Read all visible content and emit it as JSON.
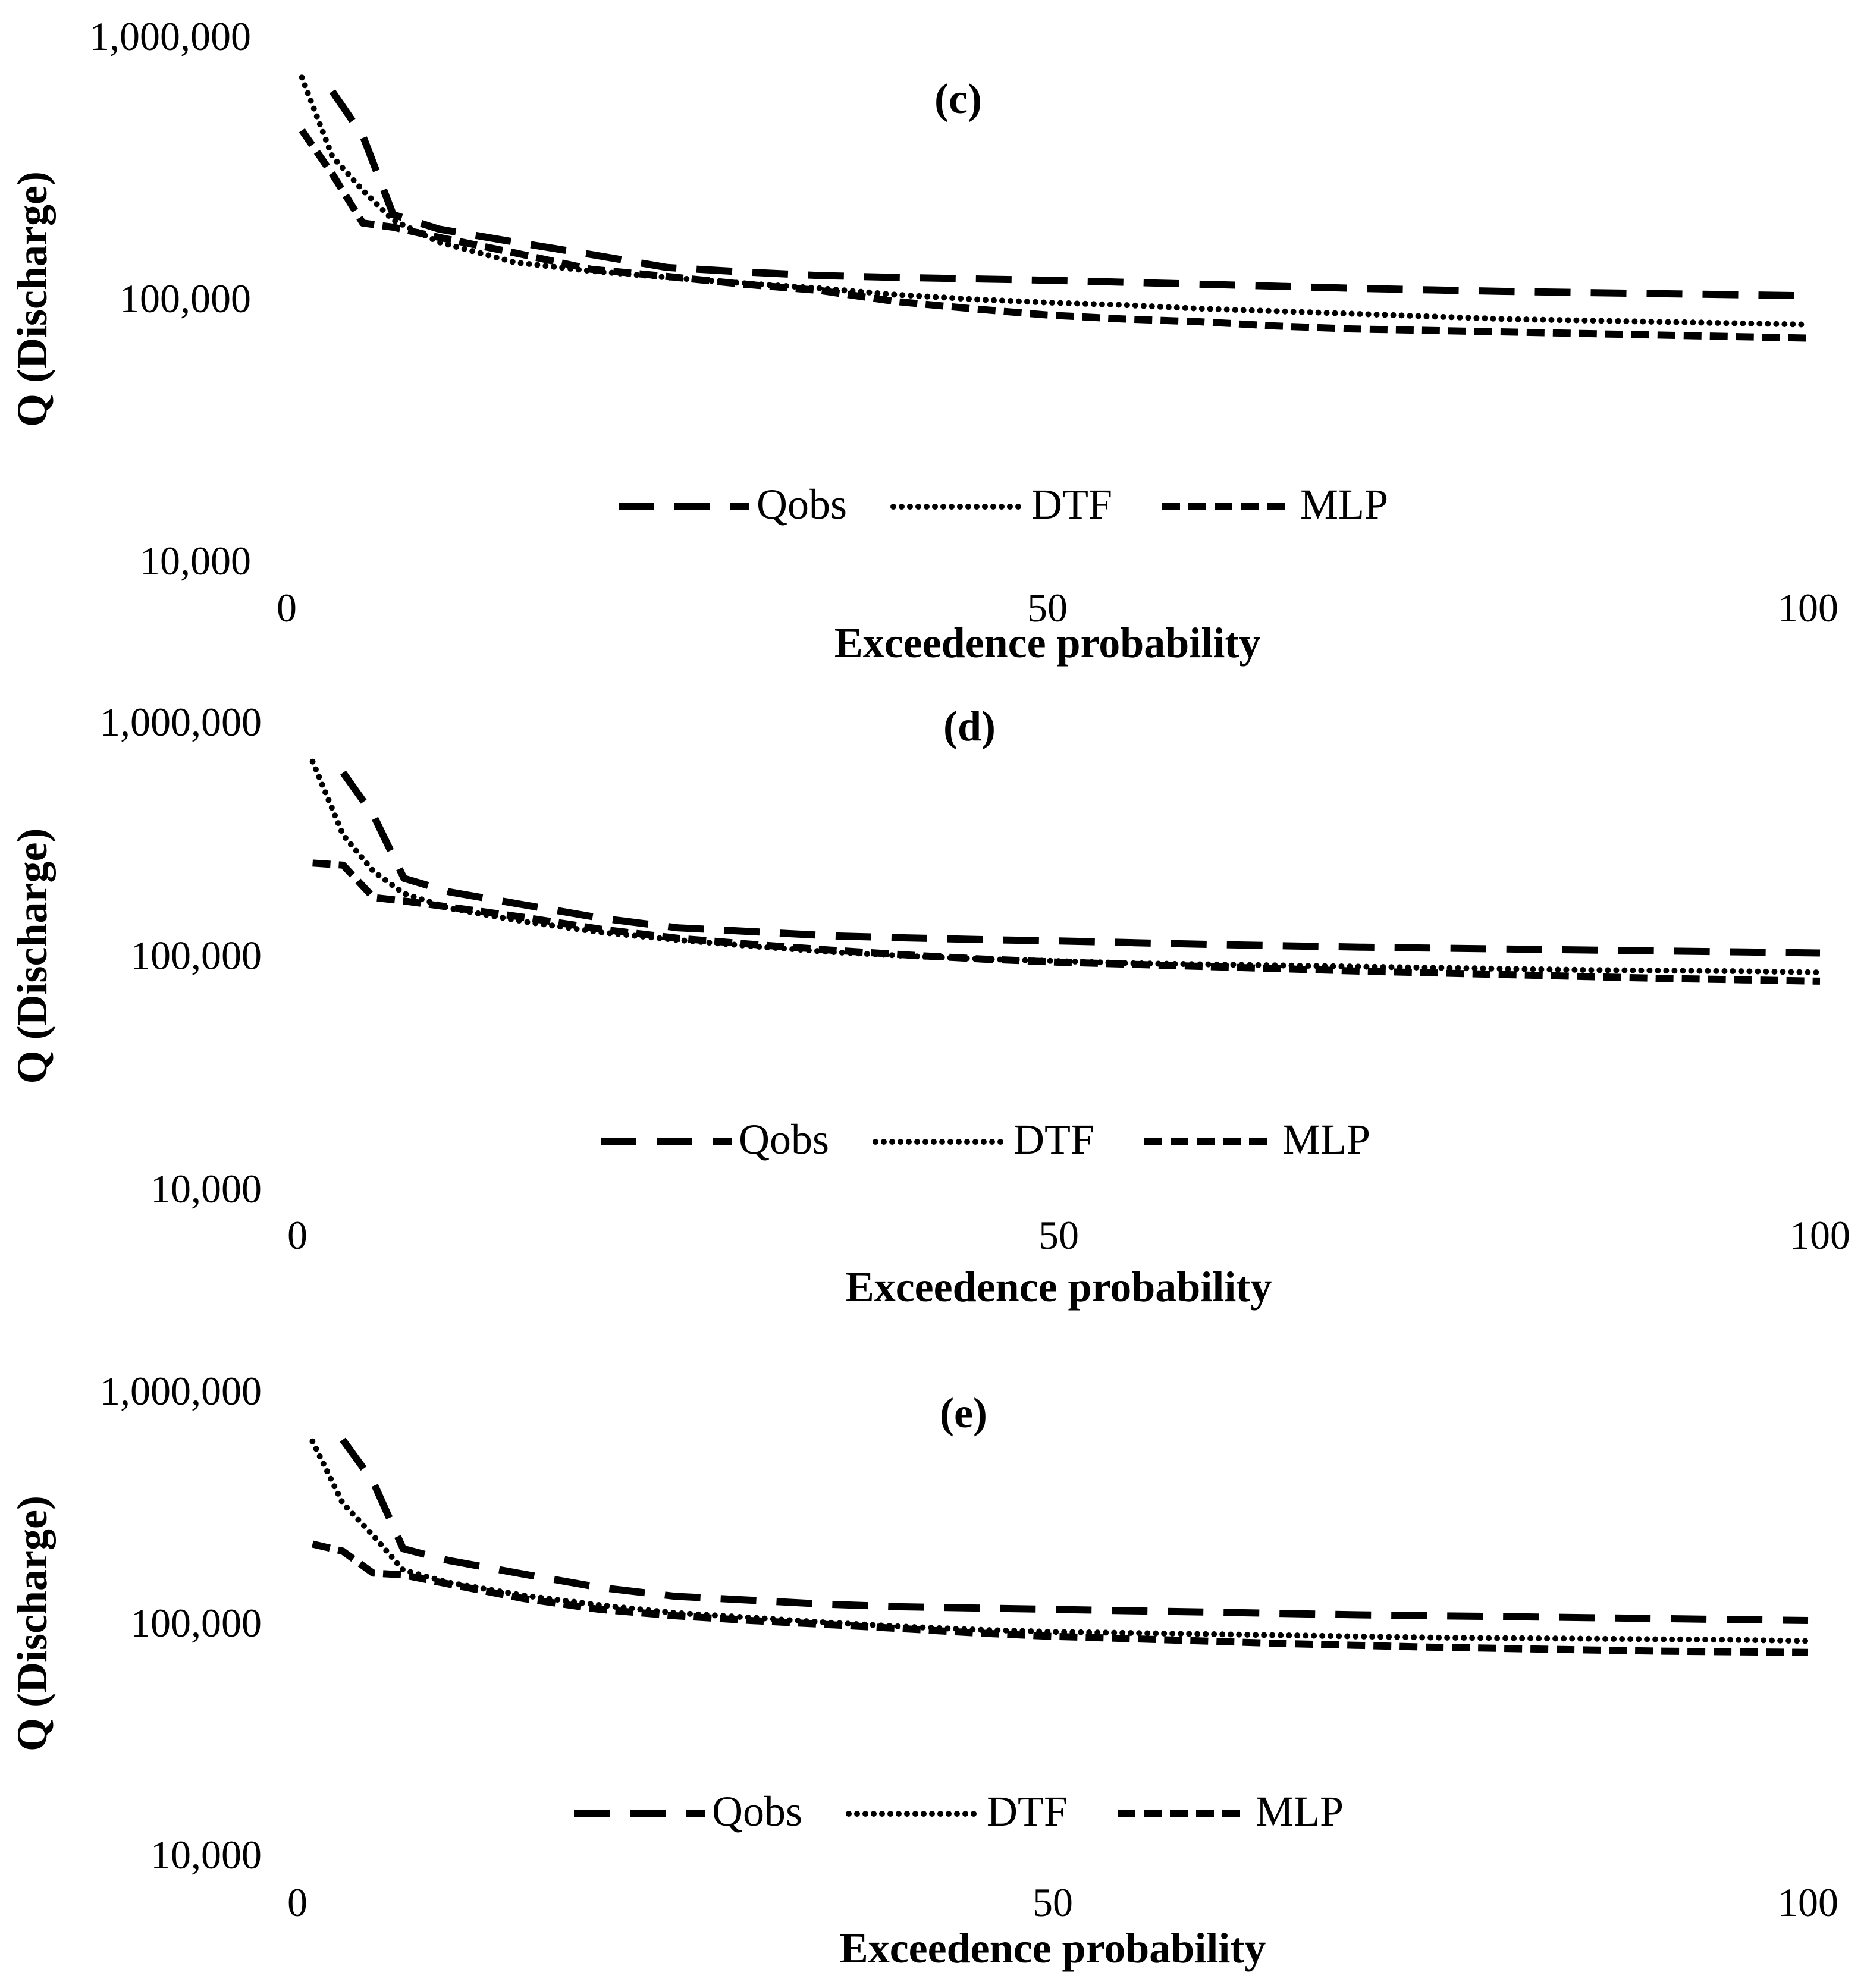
{
  "chart_data": [
    {
      "type": "line",
      "title": "(c)",
      "xlabel": "Exceedence probability",
      "ylabel": "Q (Discharge)",
      "yscale": "log",
      "ylim": [
        10000,
        1000000
      ],
      "xlim": [
        0,
        100
      ],
      "xticks": [
        "0",
        "50",
        "100"
      ],
      "yticks": [
        "10,000",
        "100,000",
        "1,000,000"
      ],
      "legend": [
        "Qobs",
        "DTF",
        "MLP"
      ],
      "x": [
        1,
        3,
        5,
        7,
        10,
        15,
        20,
        25,
        30,
        35,
        40,
        45,
        50,
        55,
        60,
        65,
        70,
        75,
        80,
        85,
        90,
        95,
        100
      ],
      "series": [
        {
          "name": "Qobs",
          "style": "long-dash",
          "values": [
            null,
            620000,
            420000,
            210000,
            185000,
            165000,
            148000,
            132000,
            127000,
            123000,
            121000,
            119500,
            118000,
            116000,
            114000,
            112000,
            110000,
            108500,
            107000,
            106000,
            105000,
            104000,
            103000
          ]
        },
        {
          "name": "DTF",
          "style": "dotted",
          "values": [
            700000,
            350000,
            260000,
            200000,
            165000,
            138000,
            128000,
            121000,
            115000,
            110000,
            104000,
            100000,
            97000,
            95000,
            92000,
            90000,
            88000,
            86000,
            84000,
            83000,
            82000,
            81000,
            80000
          ]
        },
        {
          "name": "MLP",
          "style": "short-dash",
          "values": [
            440000,
            300000,
            195000,
            188000,
            172000,
            150000,
            130000,
            122000,
            114000,
            108000,
            98000,
            92000,
            87000,
            84000,
            82000,
            79000,
            77000,
            76000,
            75000,
            74000,
            73000,
            72000,
            71000
          ]
        }
      ]
    },
    {
      "type": "line",
      "title": "(d)",
      "xlabel": "Exceedence probability",
      "ylabel": "Q (Discharge)",
      "yscale": "log",
      "ylim": [
        10000,
        1000000
      ],
      "xlim": [
        0,
        100
      ],
      "xticks": [
        "0",
        "50",
        "100"
      ],
      "yticks": [
        "10,000",
        "100,000",
        "1,000,000"
      ],
      "legend": [
        "Qobs",
        "DTF",
        "MLP"
      ],
      "x": [
        1,
        3,
        5,
        7,
        10,
        15,
        20,
        25,
        30,
        35,
        40,
        45,
        50,
        55,
        60,
        65,
        70,
        75,
        80,
        85,
        90,
        95,
        100
      ],
      "series": [
        {
          "name": "Qobs",
          "style": "long-dash",
          "values": [
            null,
            610000,
            400000,
            215000,
            188000,
            165000,
            145000,
            132000,
            127000,
            122000,
            119500,
            117500,
            116000,
            114000,
            112000,
            110500,
            109000,
            108000,
            107000,
            106000,
            105000,
            104000,
            103000
          ]
        },
        {
          "name": "DTF",
          "style": "dotted",
          "values": [
            680000,
            330000,
            230000,
            185000,
            160000,
            140000,
            126000,
            117000,
            110000,
            104000,
            100000,
            97000,
            95000,
            93000,
            92000,
            91000,
            90000,
            89000,
            88000,
            87000,
            86500,
            86000,
            85000
          ]
        },
        {
          "name": "MLP",
          "style": "short-dash",
          "values": [
            250000,
            245000,
            178000,
            172000,
            162000,
            146000,
            130000,
            119000,
            112000,
            106000,
            101000,
            97000,
            94000,
            92000,
            90000,
            88000,
            86000,
            84500,
            83000,
            81500,
            80000,
            79000,
            78000
          ]
        }
      ]
    },
    {
      "type": "line",
      "title": "(e)",
      "xlabel": "Exceedence probability",
      "ylabel": "Q (Discharge)",
      "yscale": "log",
      "ylim": [
        10000,
        1000000
      ],
      "xlim": [
        0,
        100
      ],
      "xticks": [
        "0",
        "50",
        "100"
      ],
      "yticks": [
        "10,000",
        "100,000",
        "1,000,000"
      ],
      "legend": [
        "Qobs",
        "DTF",
        "MLP"
      ],
      "x": [
        1,
        3,
        5,
        7,
        10,
        15,
        20,
        25,
        30,
        35,
        40,
        45,
        50,
        55,
        60,
        65,
        70,
        75,
        80,
        85,
        90,
        95,
        100
      ],
      "series": [
        {
          "name": "Qobs",
          "style": "long-dash",
          "values": [
            null,
            620000,
            410000,
            210000,
            187000,
            163000,
            143000,
            131000,
            126000,
            121000,
            118000,
            116500,
            115000,
            113500,
            112000,
            110500,
            109000,
            108000,
            107000,
            106000,
            105000,
            104000,
            103000
          ]
        },
        {
          "name": "DTF",
          "style": "dotted",
          "values": [
            610000,
            330000,
            240000,
            170000,
            150000,
            132000,
            120000,
            111000,
            106000,
            101000,
            97000,
            94000,
            92000,
            91000,
            90000,
            89000,
            88000,
            87000,
            86500,
            86000,
            85500,
            85000,
            84000
          ]
        },
        {
          "name": "MLP",
          "style": "short-dash",
          "values": [
            220000,
            205000,
            165000,
            162000,
            148000,
            128000,
            115000,
            108000,
            103000,
            99000,
            95000,
            91000,
            88000,
            86000,
            84000,
            82000,
            80500,
            79000,
            78000,
            77000,
            76000,
            75500,
            75000
          ]
        }
      ]
    }
  ]
}
